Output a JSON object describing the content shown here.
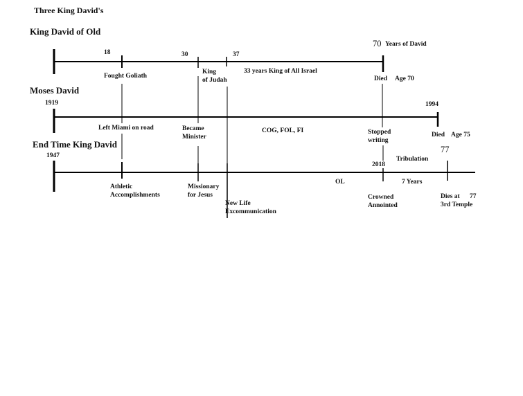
{
  "title": "Three King David's",
  "timelines": {
    "old": {
      "heading": "King David of Old",
      "age18": "18",
      "age30": "30",
      "age37": "37",
      "age70": "70",
      "years_of_david": "Years of David",
      "fought_goliath": "Fought Goliath",
      "king_judah_1": "King",
      "king_judah_2": "of Judah",
      "king_all_israel": "33 years King of All Israel",
      "died": "Died",
      "age_70": "Age 70"
    },
    "moses": {
      "heading": "Moses David",
      "start": "1919",
      "end": "1994",
      "left_miami": "Left Miami on road",
      "became_1": "Became",
      "became_2": "Minister",
      "cog": "COG, FOL, FI",
      "stopped_1": "Stopped",
      "stopped_2": "writing",
      "died": "Died",
      "age_75": "Age 75"
    },
    "endtime": {
      "heading": "End Time King David",
      "start": "1947",
      "year2018": "2018",
      "age77_top": "77",
      "athletic_1": "Athletic",
      "athletic_2": "Accomplishments",
      "missionary_1": "Missionary",
      "missionary_2": "for Jesus",
      "newlife_1": "New Life",
      "newlife_2": "Excommunication",
      "ol": "OL",
      "tribulation": "Tribulation",
      "seven_years": "7 Years",
      "crowned_1": "Crowned",
      "crowned_2": "Annointed",
      "dies_1": "Dies at",
      "dies_age": "77",
      "dies_2": "3rd Temple"
    }
  }
}
